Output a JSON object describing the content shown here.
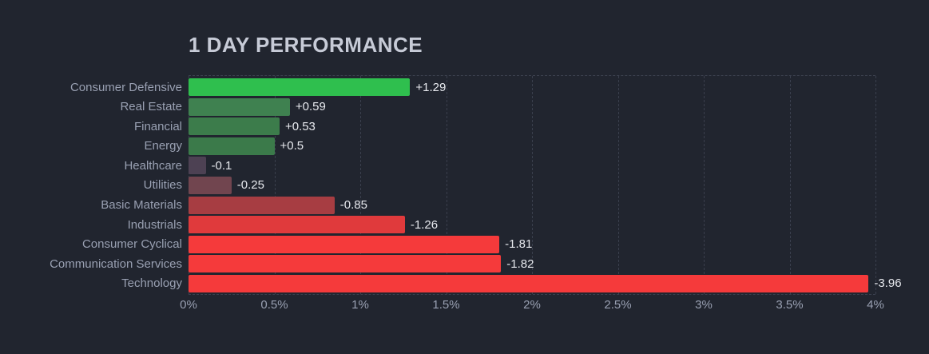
{
  "title": "1 DAY PERFORMANCE",
  "colors": {
    "background": "#21252f",
    "title_text": "#c7cbd7",
    "category_text": "#99a0b2",
    "value_text": "#e7e9ee",
    "gridline": "#3a3f4d"
  },
  "chart_data": {
    "type": "bar",
    "orientation": "horizontal",
    "title": "1 DAY PERFORMANCE",
    "xlabel": "",
    "ylabel": "",
    "xlim": [
      0,
      4
    ],
    "grid": "dashed-vertical",
    "legend": "none",
    "x_ticks": [
      "0%",
      "0.5%",
      "1%",
      "1.5%",
      "2%",
      "2.5%",
      "3%",
      "3.5%",
      "4%"
    ],
    "x_tick_values": [
      0,
      0.5,
      1,
      1.5,
      2,
      2.5,
      3,
      3.5,
      4
    ],
    "note": "bar length encodes absolute 1-day % change; green = positive, red = negative",
    "points": [
      {
        "category": "Consumer Defensive",
        "value": 1.29,
        "display": "+1.29",
        "color": "#2fbf4e"
      },
      {
        "category": "Real Estate",
        "value": 0.59,
        "display": "+0.59",
        "color": "#3f8150"
      },
      {
        "category": "Financial",
        "value": 0.53,
        "display": "+0.53",
        "color": "#3c7c4b"
      },
      {
        "category": "Energy",
        "value": 0.5,
        "display": "+0.5",
        "color": "#3b7a4a"
      },
      {
        "category": "Healthcare",
        "value": -0.1,
        "display": "-0.1",
        "color": "#4d4153"
      },
      {
        "category": "Utilities",
        "value": -0.25,
        "display": "-0.25",
        "color": "#71454f"
      },
      {
        "category": "Basic Materials",
        "value": -0.85,
        "display": "-0.85",
        "color": "#a73d42"
      },
      {
        "category": "Industrials",
        "value": -1.26,
        "display": "-1.26",
        "color": "#e03a3c"
      },
      {
        "category": "Consumer Cyclical",
        "value": -1.81,
        "display": "-1.81",
        "color": "#f53a3b"
      },
      {
        "category": "Communication Services",
        "value": -1.82,
        "display": "-1.82",
        "color": "#f53a3b"
      },
      {
        "category": "Technology",
        "value": -3.96,
        "display": "-3.96",
        "color": "#f53a3b"
      }
    ]
  }
}
